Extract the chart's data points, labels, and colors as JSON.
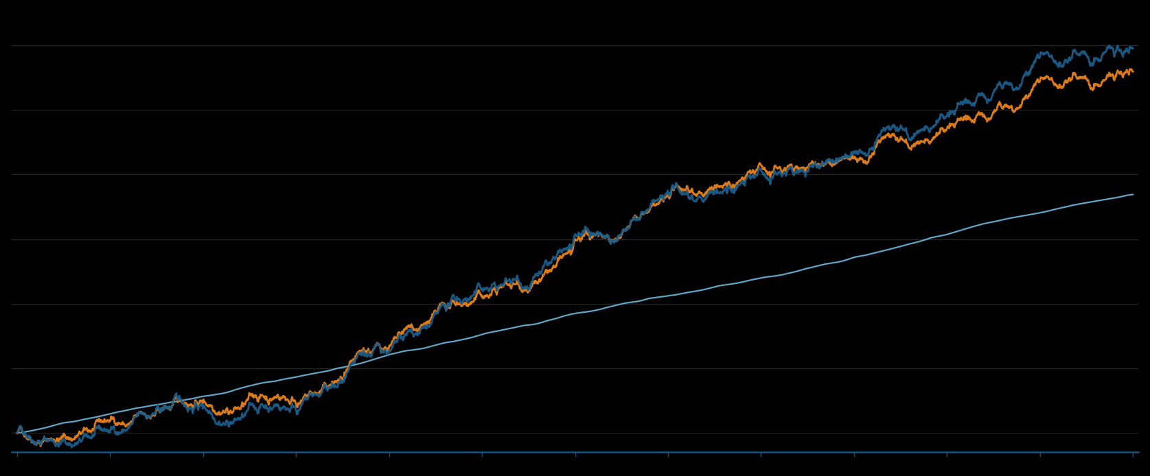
{
  "background_color": "#000000",
  "grid_color": "#2a2a2a",
  "axis_color": "#1a5276",
  "colors": {
    "navy": "#1b5e8a",
    "orange": "#e8821a",
    "light_blue": "#6ab4d8"
  },
  "line_widths": {
    "navy": 2.0,
    "orange": 2.0,
    "light_blue": 1.6
  },
  "n_points": 3000,
  "figsize": [
    16.75,
    6.94
  ],
  "dpi": 100,
  "n_xticks": 13,
  "n_ygrid": 6
}
